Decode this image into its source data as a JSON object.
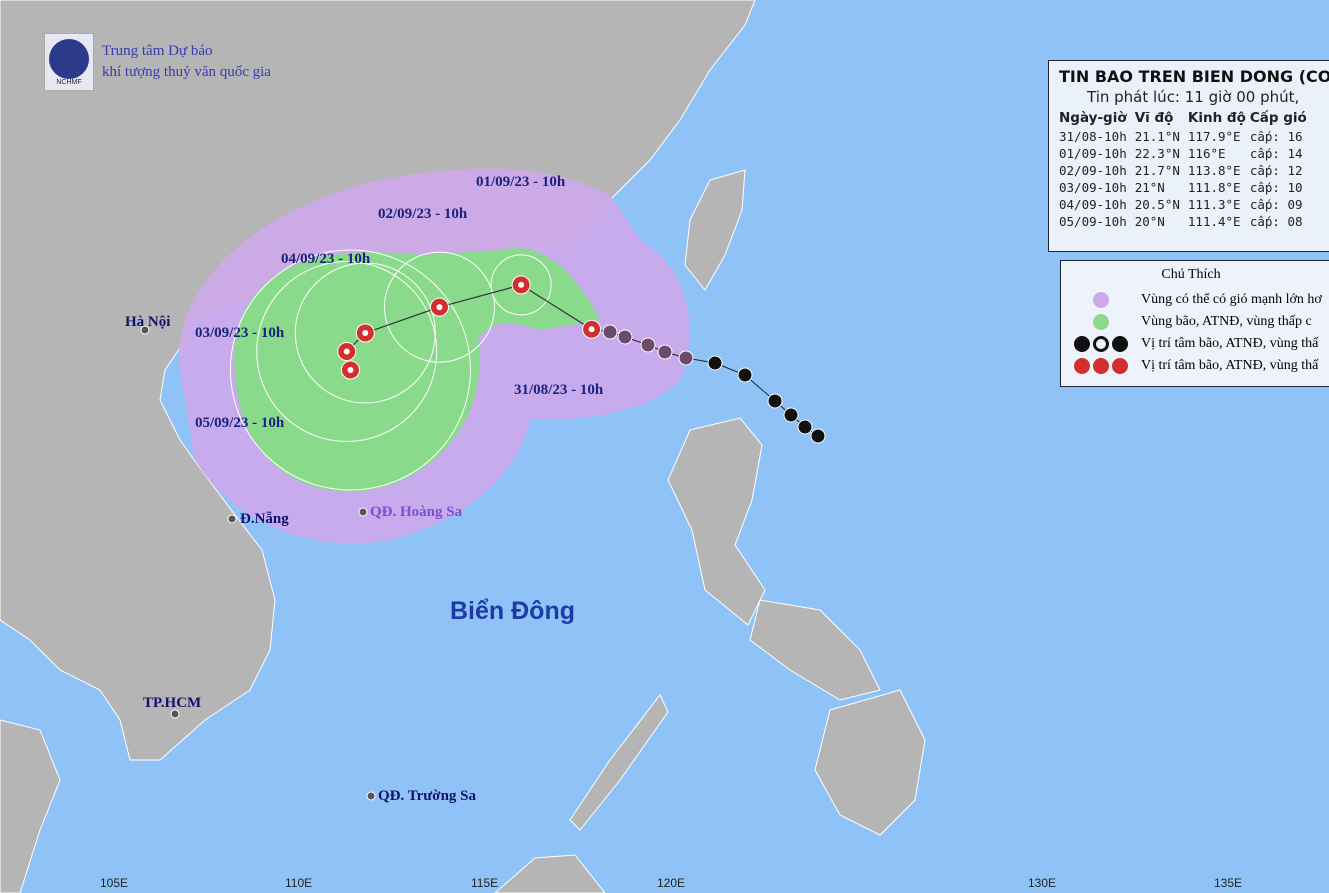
{
  "logo": {
    "line1": "Trung tâm Dự báo",
    "line2": "khí tượng thuỷ văn quốc gia",
    "abbr": "NCHMF"
  },
  "bulletin": {
    "title": "TIN BAO TREN BIEN DONG (CO",
    "issued": "Tin phát lúc: 11 giờ 00 phút,",
    "headers": [
      "Ngày-giờ",
      "Vĩ độ",
      "Kinh độ",
      "Cấp gió"
    ],
    "rows": [
      {
        "time": "31/08-10h",
        "lat": "21.1°N",
        "lon": "117.9°E",
        "wind": "cấp: 16",
        "lat_v": 21.1,
        "lon_v": 117.9
      },
      {
        "time": "01/09-10h",
        "lat": "22.3°N",
        "lon": "116°E",
        "wind": "cấp: 14",
        "lat_v": 22.3,
        "lon_v": 116.0
      },
      {
        "time": "02/09-10h",
        "lat": "21.7°N",
        "lon": "113.8°E",
        "wind": "cấp: 12",
        "lat_v": 21.7,
        "lon_v": 113.8
      },
      {
        "time": "03/09-10h",
        "lat": "21°N",
        "lon": "111.8°E",
        "wind": "cấp: 10",
        "lat_v": 21.0,
        "lon_v": 111.8
      },
      {
        "time": "04/09-10h",
        "lat": "20.5°N",
        "lon": "111.3°E",
        "wind": "cấp: 09",
        "lat_v": 20.5,
        "lon_v": 111.3
      },
      {
        "time": "05/09-10h",
        "lat": "20°N",
        "lon": "111.4°E",
        "wind": "cấp: 08",
        "lat_v": 20.0,
        "lon_v": 111.4
      }
    ]
  },
  "legend": {
    "title": "Chú Thích",
    "items": [
      {
        "label": "Vùng có thể có gió mạnh lớn hơ",
        "color": "#cda8ea"
      },
      {
        "label": "Vùng bão, ATNĐ, vùng thấp c",
        "color": "#8ed88e"
      },
      {
        "label": "Vị trí tâm bão, ATNĐ, vùng thấ",
        "color": "#111111"
      },
      {
        "label": "Vị trí tâm bão, ATNĐ, vùng thấ",
        "color": "#d32f2f"
      }
    ]
  },
  "map": {
    "date_labels": [
      "31/08/23 - 10h",
      "01/09/23 - 10h",
      "02/09/23 - 10h",
      "03/09/23 - 10h",
      "04/09/23 - 10h",
      "05/09/23 - 10h"
    ],
    "places": {
      "hanoi": "Hà Nội",
      "danang": "Đ.Nẵng",
      "hcm": "TP.HCM",
      "hoangsa": "QĐ. Hoàng Sa",
      "truongsa": "QĐ. Trường Sa"
    },
    "sea": "Biển Đông",
    "lon_ticks": [
      "105E",
      "110E",
      "115E",
      "120E",
      "130E",
      "135E"
    ],
    "colors": {
      "sea": "#8fc3f7",
      "land": "#b5b5b5",
      "risk_zone": "#cda8ea",
      "storm_zone": "#8ed88e",
      "forecast": "#d32f2f",
      "past": "#111111"
    }
  }
}
